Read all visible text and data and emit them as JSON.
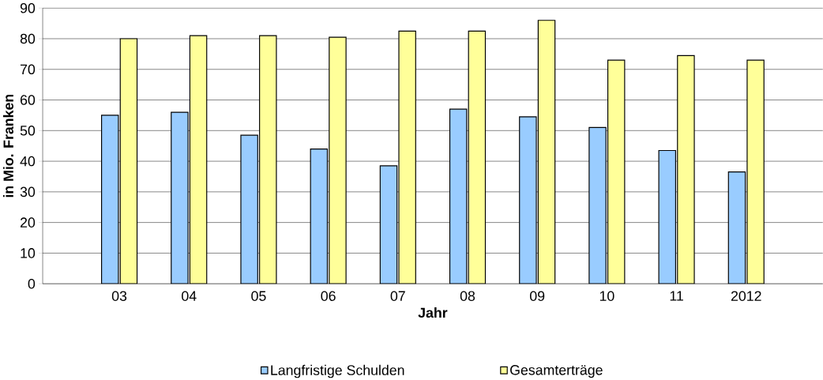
{
  "chart_data": {
    "type": "bar",
    "xlabel": "Jahr",
    "ylabel": "in Mio. Franken",
    "categories": [
      "03",
      "04",
      "05",
      "06",
      "07",
      "08",
      "09",
      "10",
      "11",
      "2012"
    ],
    "series": [
      {
        "name": "Langfristige Schulden",
        "color": "#99ccff",
        "values": [
          55,
          56,
          48.5,
          44,
          38.5,
          57,
          54.5,
          51,
          43.5,
          36.5
        ]
      },
      {
        "name": "Gesamterträge",
        "color": "#ffff99",
        "values": [
          80,
          81,
          81,
          80.5,
          82.5,
          82.5,
          86,
          73,
          74.5,
          73
        ]
      }
    ],
    "ylim": [
      0,
      90
    ],
    "yticks": [
      0,
      10,
      20,
      30,
      40,
      50,
      60,
      70,
      80,
      90
    ],
    "grid": "y",
    "legend": "bottom"
  }
}
